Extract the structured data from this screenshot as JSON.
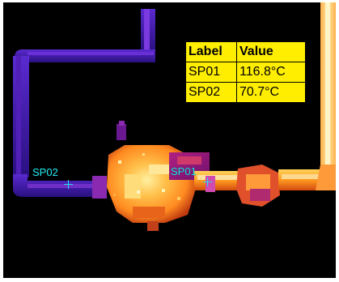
{
  "measurement_table": {
    "headers": [
      "Label",
      "Value"
    ],
    "rows": [
      {
        "label": "SP01",
        "value": "116.8°C"
      },
      {
        "label": "SP02",
        "value": "70.7°C"
      }
    ]
  },
  "spots": {
    "sp01": {
      "name": "SP01"
    },
    "sp02": {
      "name": "SP02"
    }
  },
  "colors": {
    "background": "#000000",
    "table_fill": "#ffee00",
    "spot_marker": "#22e0e6",
    "cold_pipe": "#3a1aa0",
    "hot_body": "#ff9a1a",
    "hottest": "#fff0a0"
  }
}
